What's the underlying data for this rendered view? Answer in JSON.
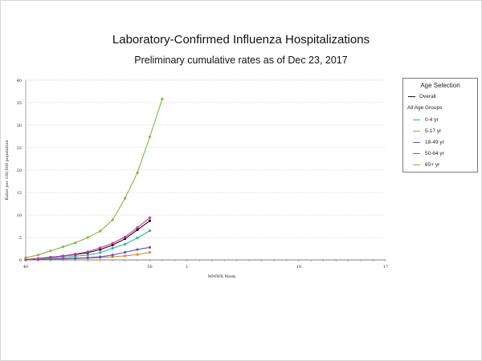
{
  "chart_data": {
    "type": "line",
    "title": "Laboratory-Confirmed Influenza Hospitalizations",
    "subtitle": "Preliminary cumulative rates as of Dec 23, 2017",
    "xlabel": "MMWR Week",
    "ylabel": "Rates per 100,000 population",
    "ylim": [
      0,
      40
    ],
    "yticks": [
      "0",
      "5",
      "10",
      "15",
      "20",
      "25",
      "30",
      "35",
      "40"
    ],
    "xticks": [
      "40",
      "50",
      "1",
      "10",
      "17"
    ],
    "xlim_index": [
      0,
      29
    ],
    "grid": true,
    "legend_position": "right",
    "legend_title": "Age Selection",
    "legend_group_label": "All Age Groups",
    "x": [
      40,
      41,
      42,
      43,
      44,
      45,
      46,
      47,
      48,
      49,
      50,
      51
    ],
    "series": [
      {
        "name": "Overall",
        "color": "#111111",
        "values": [
          0.1,
          0.3,
          0.6,
          0.9,
          1.2,
          1.6,
          2.3,
          3.3,
          4.7,
          6.7,
          8.7,
          null
        ]
      },
      {
        "name": "0-4 yr",
        "color": "#2ab3a1",
        "values": [
          0.1,
          0.2,
          0.4,
          0.6,
          0.8,
          1.1,
          1.6,
          2.6,
          3.5,
          4.9,
          6.5,
          null
        ]
      },
      {
        "name": "5-17 yr",
        "color": "#e08a1c",
        "values": [
          0.0,
          0.1,
          0.1,
          0.2,
          0.3,
          0.4,
          0.5,
          0.7,
          0.9,
          1.2,
          1.7,
          null
        ]
      },
      {
        "name": "18-49 yr",
        "color": "#5b55c9",
        "values": [
          0.0,
          0.1,
          0.2,
          0.3,
          0.4,
          0.5,
          0.7,
          1.1,
          1.7,
          2.3,
          2.8,
          null
        ]
      },
      {
        "name": "50-64 yr",
        "color": "#d62f9e",
        "values": [
          0.1,
          0.3,
          0.6,
          0.9,
          1.3,
          1.8,
          2.7,
          3.7,
          5.1,
          7.2,
          9.4,
          null
        ]
      },
      {
        "name": "65+ yr",
        "color": "#7cbc3d",
        "values": [
          0.5,
          1.1,
          2.0,
          2.9,
          3.8,
          5.0,
          6.4,
          8.9,
          13.7,
          19.4,
          27.4,
          35.8
        ]
      }
    ]
  }
}
